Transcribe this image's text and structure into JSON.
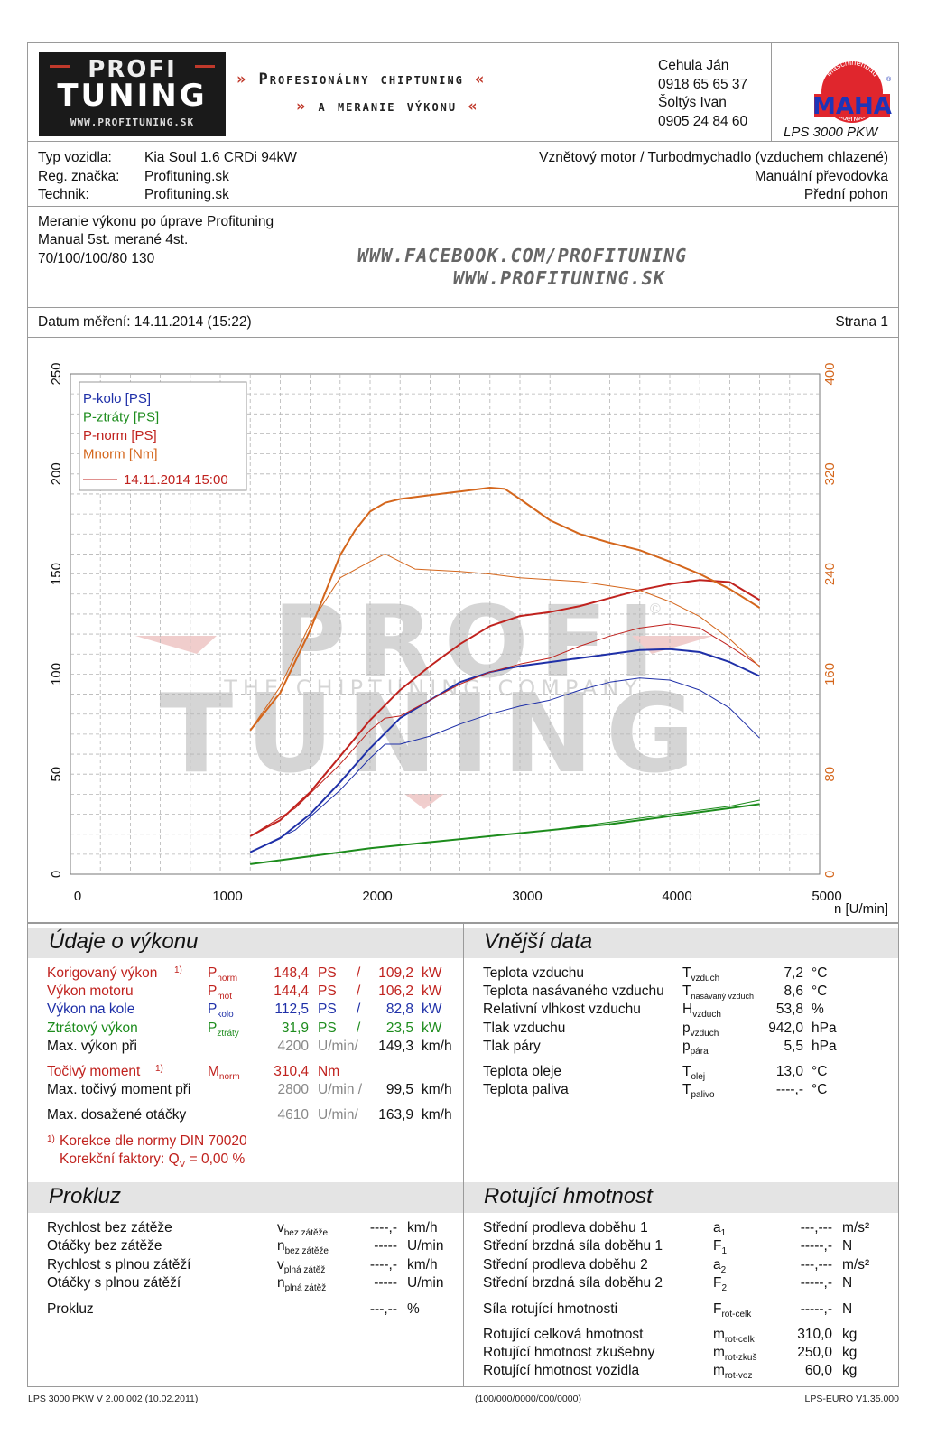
{
  "header": {
    "logo": {
      "line1": "PROFI",
      "tagline": "THE CHIPTUNING COMPANY",
      "line2": "TUNING",
      "web": "WWW.PROFITUNING.SK"
    },
    "slogan1": "Profesionálny chiptuning",
    "slogan2": "a meranie výkonu",
    "contact": [
      "Cehula Ján",
      "0918 65 65 37",
      "Šoltýs Ivan",
      "0905 24 84 60"
    ],
    "maha": {
      "ring_top": "Maschinenbau",
      "ring_bottom": "Haldenwang",
      "name": "MAHA",
      "reg": "®"
    },
    "device": "LPS 3000 PKW"
  },
  "vehicle": {
    "type_label": "Typ vozidla:",
    "type_value": "Kia Soul 1.6 CRDi 94kW",
    "reg_label": "Reg. značka:",
    "reg_value": "Profituning.sk",
    "tech_label": "Technik:",
    "tech_value": "Profituning.sk",
    "engine": "Vznětový motor / Turbodmychadlo (vzduchem chlazené)",
    "gearbox": "Manuální převodovka",
    "drive": "Přední pohon"
  },
  "notes": {
    "line1": "Meranie výkonu po úprave Profituning",
    "line2": "Manual 5st. merané 4st.",
    "line3": "70/100/100/80 130",
    "url1": "WWW.FACEBOOK.COM/PROFITUNING",
    "url2": "WWW.PROFITUNING.SK"
  },
  "date_bar": {
    "date": "Datum měření: 14.11.2014 (15:22)",
    "page": "Strana 1"
  },
  "watermark": {
    "line1": "PROFI",
    "line2": "THE CHIPTUNING COMPANY",
    "line3": "TUNING",
    "copy": "©"
  },
  "colors": {
    "blue": "#1f30a8",
    "green": "#1d8c1d",
    "red": "#c0221e",
    "orange": "#d4661c",
    "grid": "#b5b5b5"
  },
  "chart_data": {
    "type": "line",
    "xlabel": "n [U/min]",
    "xlim": [
      0,
      5000
    ],
    "x_ticks": [
      "0",
      "1000",
      "2000",
      "3000",
      "4000",
      "5000"
    ],
    "y_left_lim": [
      0,
      250
    ],
    "y_left_ticks": [
      "0",
      "50",
      "100",
      "150",
      "200",
      "250"
    ],
    "y_right_lim": [
      0,
      400
    ],
    "y_right_ticks": [
      "0",
      "80",
      "160",
      "240",
      "320",
      "400"
    ],
    "grid": true,
    "legend_position": "top-left",
    "legend": [
      {
        "label": "P-kolo [PS]",
        "color": "#1f30a8"
      },
      {
        "label": "P-ztráty [PS]",
        "color": "#1d8c1d"
      },
      {
        "label": "P-norm [PS]",
        "color": "#c0221e"
      },
      {
        "label": "Mnorm [Nm]",
        "color": "#d4661c"
      },
      {
        "label": "14.11.2014 15:00",
        "color": "#c0221e"
      }
    ],
    "series": [
      {
        "name": "P-kolo [PS]",
        "color": "#1f30a8",
        "axis": "left",
        "width": 2,
        "points": [
          [
            1200,
            11
          ],
          [
            1400,
            18
          ],
          [
            1600,
            30
          ],
          [
            1800,
            46
          ],
          [
            2000,
            63
          ],
          [
            2200,
            78
          ],
          [
            2400,
            87
          ],
          [
            2600,
            96
          ],
          [
            2800,
            101
          ],
          [
            3000,
            104
          ],
          [
            3200,
            106
          ],
          [
            3400,
            108
          ],
          [
            3600,
            110
          ],
          [
            3800,
            112
          ],
          [
            4000,
            112.5
          ],
          [
            4200,
            111
          ],
          [
            4400,
            106
          ],
          [
            4600,
            99
          ]
        ]
      },
      {
        "name": "P-ztráty [PS]",
        "color": "#1d8c1d",
        "axis": "left",
        "width": 2,
        "points": [
          [
            1200,
            5
          ],
          [
            1600,
            9
          ],
          [
            2000,
            13
          ],
          [
            2400,
            16
          ],
          [
            2800,
            19
          ],
          [
            3200,
            22
          ],
          [
            3600,
            25
          ],
          [
            4000,
            29
          ],
          [
            4400,
            33
          ],
          [
            4600,
            35
          ]
        ]
      },
      {
        "name": "P-norm [PS]",
        "color": "#c0221e",
        "axis": "left",
        "width": 2,
        "points": [
          [
            1200,
            19
          ],
          [
            1400,
            27
          ],
          [
            1600,
            41
          ],
          [
            1800,
            59
          ],
          [
            2000,
            77
          ],
          [
            2200,
            92
          ],
          [
            2400,
            104
          ],
          [
            2600,
            115
          ],
          [
            2800,
            124
          ],
          [
            3000,
            129
          ],
          [
            3200,
            131
          ],
          [
            3400,
            134
          ],
          [
            3600,
            138
          ],
          [
            3800,
            142
          ],
          [
            4000,
            145
          ],
          [
            4200,
            147
          ],
          [
            4400,
            146
          ],
          [
            4600,
            137
          ]
        ]
      },
      {
        "name": "Mnorm [Nm]",
        "color": "#d4661c",
        "axis": "right",
        "width": 2,
        "points": [
          [
            1200,
            115
          ],
          [
            1400,
            145
          ],
          [
            1600,
            195
          ],
          [
            1800,
            255
          ],
          [
            1900,
            275
          ],
          [
            2000,
            290
          ],
          [
            2100,
            297
          ],
          [
            2200,
            300
          ],
          [
            2400,
            303
          ],
          [
            2600,
            306
          ],
          [
            2800,
            309
          ],
          [
            2900,
            308
          ],
          [
            3000,
            300
          ],
          [
            3200,
            283
          ],
          [
            3400,
            272
          ],
          [
            3600,
            265
          ],
          [
            3800,
            259
          ],
          [
            4000,
            250
          ],
          [
            4200,
            240
          ],
          [
            4400,
            228
          ],
          [
            4600,
            213
          ]
        ]
      },
      {
        "name": "P-kolo ref",
        "color": "#1f30a8",
        "axis": "left",
        "width": 1,
        "points": [
          [
            1200,
            11
          ],
          [
            1500,
            22
          ],
          [
            1800,
            42
          ],
          [
            2000,
            58
          ],
          [
            2100,
            65
          ],
          [
            2200,
            65
          ],
          [
            2400,
            69
          ],
          [
            2600,
            75
          ],
          [
            2800,
            80
          ],
          [
            3000,
            84
          ],
          [
            3200,
            87
          ],
          [
            3400,
            92
          ],
          [
            3600,
            96
          ],
          [
            3800,
            98
          ],
          [
            4000,
            97
          ],
          [
            4200,
            92
          ],
          [
            4400,
            83
          ],
          [
            4600,
            68
          ]
        ]
      },
      {
        "name": "P-ztráty ref",
        "color": "#1d8c1d",
        "axis": "left",
        "width": 1,
        "points": [
          [
            1200,
            5
          ],
          [
            1600,
            9
          ],
          [
            2000,
            13
          ],
          [
            2400,
            16
          ],
          [
            2800,
            19
          ],
          [
            3200,
            22
          ],
          [
            3600,
            26
          ],
          [
            4000,
            30
          ],
          [
            4400,
            34
          ],
          [
            4600,
            37
          ]
        ]
      },
      {
        "name": "P-norm ref",
        "color": "#c0221e",
        "axis": "left",
        "width": 1,
        "points": [
          [
            1200,
            19
          ],
          [
            1500,
            33
          ],
          [
            1800,
            55
          ],
          [
            2000,
            72
          ],
          [
            2100,
            78
          ],
          [
            2200,
            79
          ],
          [
            2400,
            87
          ],
          [
            2600,
            95
          ],
          [
            2800,
            101
          ],
          [
            3000,
            105
          ],
          [
            3200,
            108
          ],
          [
            3400,
            114
          ],
          [
            3600,
            119
          ],
          [
            3800,
            123
          ],
          [
            4000,
            125
          ],
          [
            4200,
            123
          ],
          [
            4400,
            114
          ],
          [
            4600,
            104
          ]
        ]
      },
      {
        "name": "Mnorm ref",
        "color": "#d4661c",
        "axis": "right",
        "width": 1,
        "points": [
          [
            1200,
            115
          ],
          [
            1400,
            150
          ],
          [
            1600,
            200
          ],
          [
            1800,
            237
          ],
          [
            2000,
            250
          ],
          [
            2100,
            256
          ],
          [
            2200,
            250
          ],
          [
            2300,
            244
          ],
          [
            2600,
            242
          ],
          [
            2800,
            240
          ],
          [
            3000,
            237
          ],
          [
            3400,
            234
          ],
          [
            3800,
            227
          ],
          [
            4000,
            218
          ],
          [
            4200,
            206
          ],
          [
            4400,
            188
          ],
          [
            4600,
            166
          ]
        ]
      }
    ]
  },
  "performance": {
    "title": "Údaje o výkonu",
    "rows": [
      {
        "label": "Korigovaný výkon",
        "sup": "1)",
        "sym": "P",
        "sub": "norm",
        "v1": "148,4",
        "u1": "PS",
        "sep": "/",
        "v2": "109,2",
        "u2": "kW",
        "cls": "red"
      },
      {
        "label": "Výkon motoru",
        "sup": "",
        "sym": "P",
        "sub": "mot",
        "v1": "144,4",
        "u1": "PS",
        "sep": "/",
        "v2": "106,2",
        "u2": "kW",
        "cls": "red"
      },
      {
        "label": "Výkon na kole",
        "sup": "",
        "sym": "P",
        "sub": "kolo",
        "v1": "112,5",
        "u1": "PS",
        "sep": "/",
        "v2": "82,8",
        "u2": "kW",
        "cls": "blue"
      },
      {
        "label": "Ztrátový výkon",
        "sup": "",
        "sym": "P",
        "sub": "ztráty",
        "v1": "31,9",
        "u1": "PS",
        "sep": "/",
        "v2": "23,5",
        "u2": "kW",
        "cls": "green"
      }
    ],
    "max_power": {
      "label": "Max. výkon při",
      "rpm": "4200",
      "rpm_unit": "U/min/",
      "speed": "149,3",
      "speed_unit": "km/h"
    },
    "torque": {
      "label": "Točivý moment",
      "sup": "1)",
      "sym": "M",
      "sub": "norm",
      "value": "310,4",
      "unit": "Nm"
    },
    "max_torque": {
      "label": "Max. točivý moment při",
      "rpm": "2800",
      "rpm_unit": "U/min /",
      "speed": "99,5",
      "speed_unit": "km/h"
    },
    "max_rpm": {
      "label": "Max. dosažené otáčky",
      "rpm": "4610",
      "rpm_unit": "U/min/",
      "speed": "163,9",
      "speed_unit": "km/h"
    },
    "norm_note": {
      "sup": "1)",
      "line1": "Korekce dle normy DIN 70020",
      "line2_label": "Korekční faktory: Q",
      "line2_sub": "V",
      "line2_value": "=     0,00 %"
    }
  },
  "external": {
    "title": "Vnější data",
    "rows": [
      {
        "label": "Teplota vzduchu",
        "sym": "T",
        "sub": "vzduch",
        "value": "7,2",
        "unit": "°C"
      },
      {
        "label": "Teplota nasávaného vzduchu",
        "sym": "T",
        "sub": "nasávaný vzduch",
        "value": "8,6",
        "unit": "°C"
      },
      {
        "label": "Relativní vlhkost vzduchu",
        "sym": "H",
        "sub": "vzduch",
        "value": "53,8",
        "unit": "%"
      },
      {
        "label": "Tlak vzduchu",
        "sym": "p",
        "sub": "vzduch",
        "value": "942,0",
        "unit": "hPa"
      },
      {
        "label": "Tlak páry",
        "sym": "p",
        "sub": "pára",
        "value": "5,5",
        "unit": "hPa"
      },
      {
        "label": "Teplota oleje",
        "sym": "T",
        "sub": "olej",
        "value": "13,0",
        "unit": "°C"
      },
      {
        "label": "Teplota paliva",
        "sym": "T",
        "sub": "palivo",
        "value": "----,-",
        "unit": "°C"
      }
    ]
  },
  "slip": {
    "title": "Prokluz",
    "rows": [
      {
        "label": "Rychlost bez zátěže",
        "sym": "v",
        "sub": "bez zátěže",
        "value": "----,-",
        "unit": "km/h"
      },
      {
        "label": "Otáčky bez zátěže",
        "sym": "n",
        "sub": "bez zátěže",
        "value": "-----",
        "unit": "U/min"
      },
      {
        "label": "Rychlost s plnou zátěží",
        "sym": "v",
        "sub": "plná zátěž",
        "value": "----,-",
        "unit": "km/h"
      },
      {
        "label": "Otáčky s plnou zátěží",
        "sym": "n",
        "sub": "plná zátěž",
        "value": "-----",
        "unit": "U/min"
      },
      {
        "label": "Prokluz",
        "sym": "",
        "sub": "",
        "value": "---,--",
        "unit": "%"
      }
    ]
  },
  "rotating": {
    "title": "Rotující hmotnost",
    "rows": [
      {
        "label": "Střední prodleva doběhu 1",
        "sym": "a",
        "sub": "1",
        "value": "---,---",
        "unit": "m/s²"
      },
      {
        "label": "Střední brzdná síla doběhu 1",
        "sym": "F",
        "sub": "1",
        "value": "-----,-",
        "unit": "N"
      },
      {
        "label": "Střední prodleva doběhu 2",
        "sym": "a",
        "sub": "2",
        "value": "---,---",
        "unit": "m/s²"
      },
      {
        "label": "Střední brzdná síla doběhu 2",
        "sym": "F",
        "sub": "2",
        "value": "-----,-",
        "unit": "N"
      },
      {
        "label": "Síla rotující hmotnosti",
        "sym": "F",
        "sub": "rot-celk",
        "value": "-----,-",
        "unit": "N"
      },
      {
        "label": "Rotující celková hmotnost",
        "sym": "m",
        "sub": "rot-celk",
        "value": "310,0",
        "unit": "kg"
      },
      {
        "label": "Rotující hmotnost zkušebny",
        "sym": "m",
        "sub": "rot-zkuš",
        "value": "250,0",
        "unit": "kg"
      },
      {
        "label": "Rotující hmotnost vozidla",
        "sym": "m",
        "sub": "rot-voz",
        "value": "60,0",
        "unit": "kg"
      }
    ]
  },
  "footer": {
    "left": "LPS 3000 PKW V 2.00.002 (10.02.2011)",
    "center": "(100/000/0000/000/0000)",
    "right": "LPS-EURO V1.35.000"
  }
}
